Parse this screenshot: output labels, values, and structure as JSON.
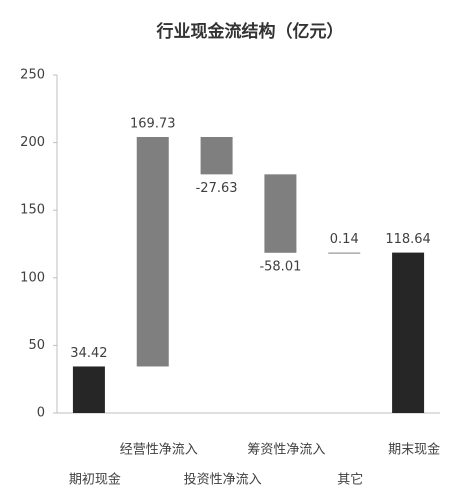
{
  "chart_data": {
    "type": "waterfall",
    "title": "行业现金流结构（亿元）",
    "categories": [
      "期初现金",
      "经营性净流入",
      "投资性净流入",
      "筹资性净流入",
      "其它",
      "期末现金"
    ],
    "values": [
      34.42,
      169.73,
      -27.63,
      -58.01,
      0.14,
      118.64
    ],
    "color": "#7f7f7f",
    "total_color": "#262626",
    "ylim": [
      0,
      250
    ],
    "yticks": [
      0,
      50,
      100,
      150,
      200,
      250
    ],
    "grid": false
  }
}
